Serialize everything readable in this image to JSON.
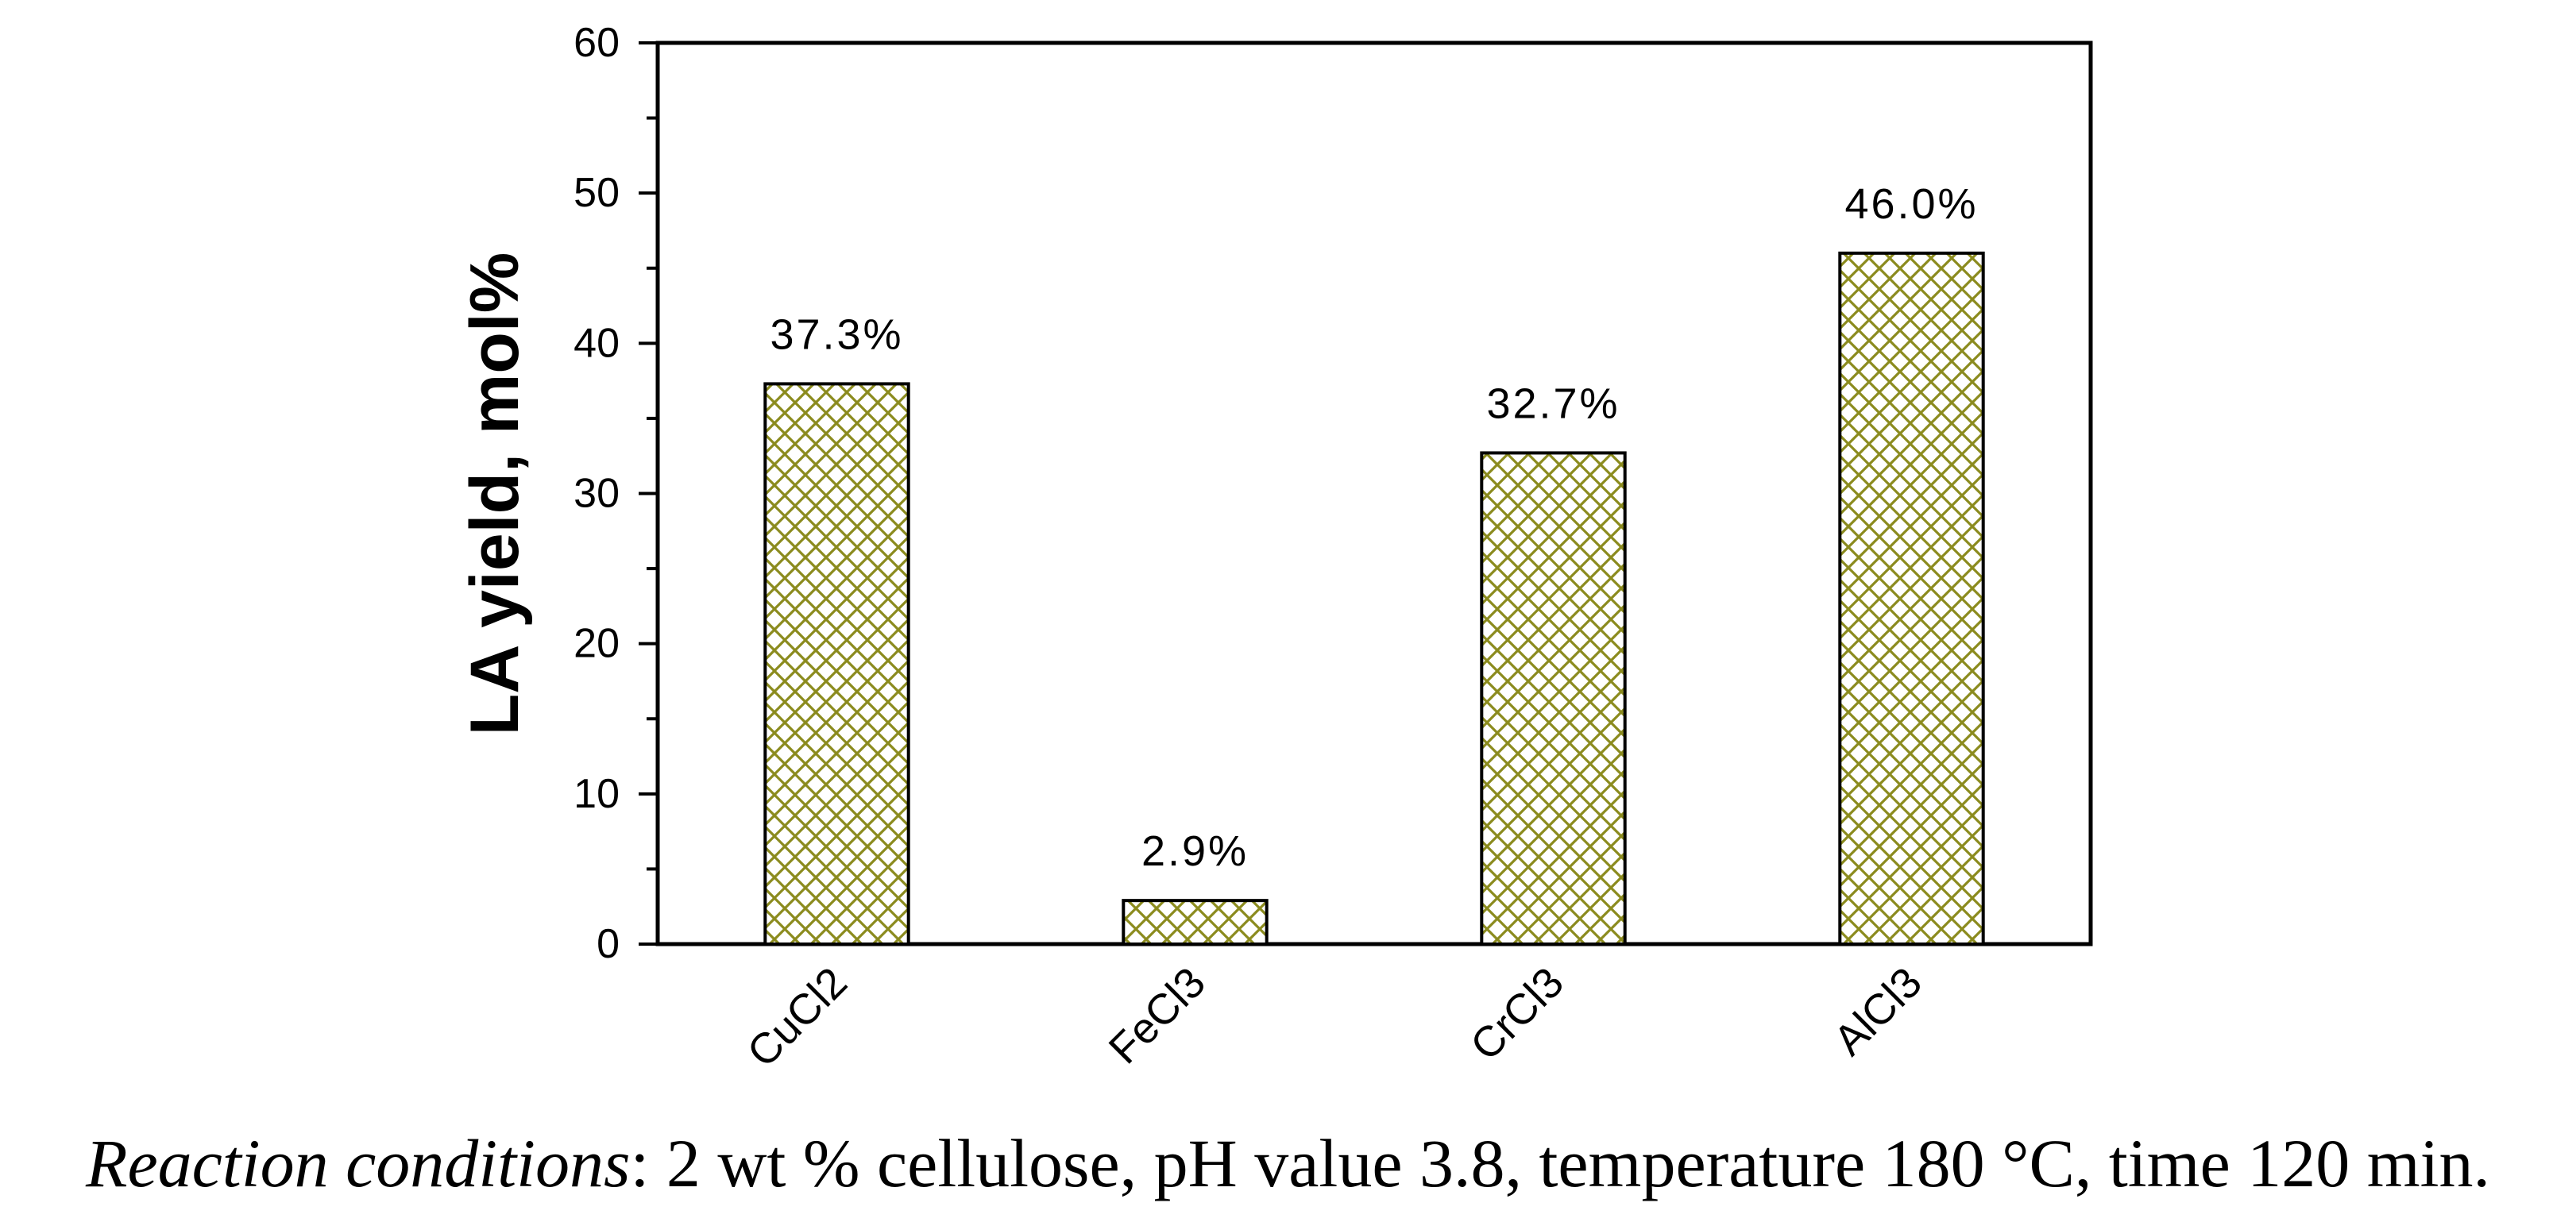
{
  "chart_data": {
    "type": "bar",
    "categories": [
      "CuCl2",
      "FeCl3",
      "CrCl3",
      "AlCl3"
    ],
    "values": [
      37.3,
      2.9,
      32.7,
      46.0
    ],
    "data_labels": [
      "37.3%",
      "2.9%",
      "32.7%",
      "46.0%"
    ],
    "title": "",
    "xlabel": "",
    "ylabel": "LA yield, mol%",
    "ylim": [
      0,
      60
    ],
    "yticks": [
      0,
      10,
      20,
      30,
      40,
      50,
      60
    ],
    "grid": false,
    "bar_fill": "crosshatch",
    "colors": {
      "hatch": "#8b8b1e",
      "bar_edge": "#000000",
      "axis": "#000000"
    }
  },
  "caption": {
    "lead": "Reaction conditions",
    "text": ": 2 wt % cellulose, pH value 3.8, temperature 180 °C, time 120 min."
  }
}
